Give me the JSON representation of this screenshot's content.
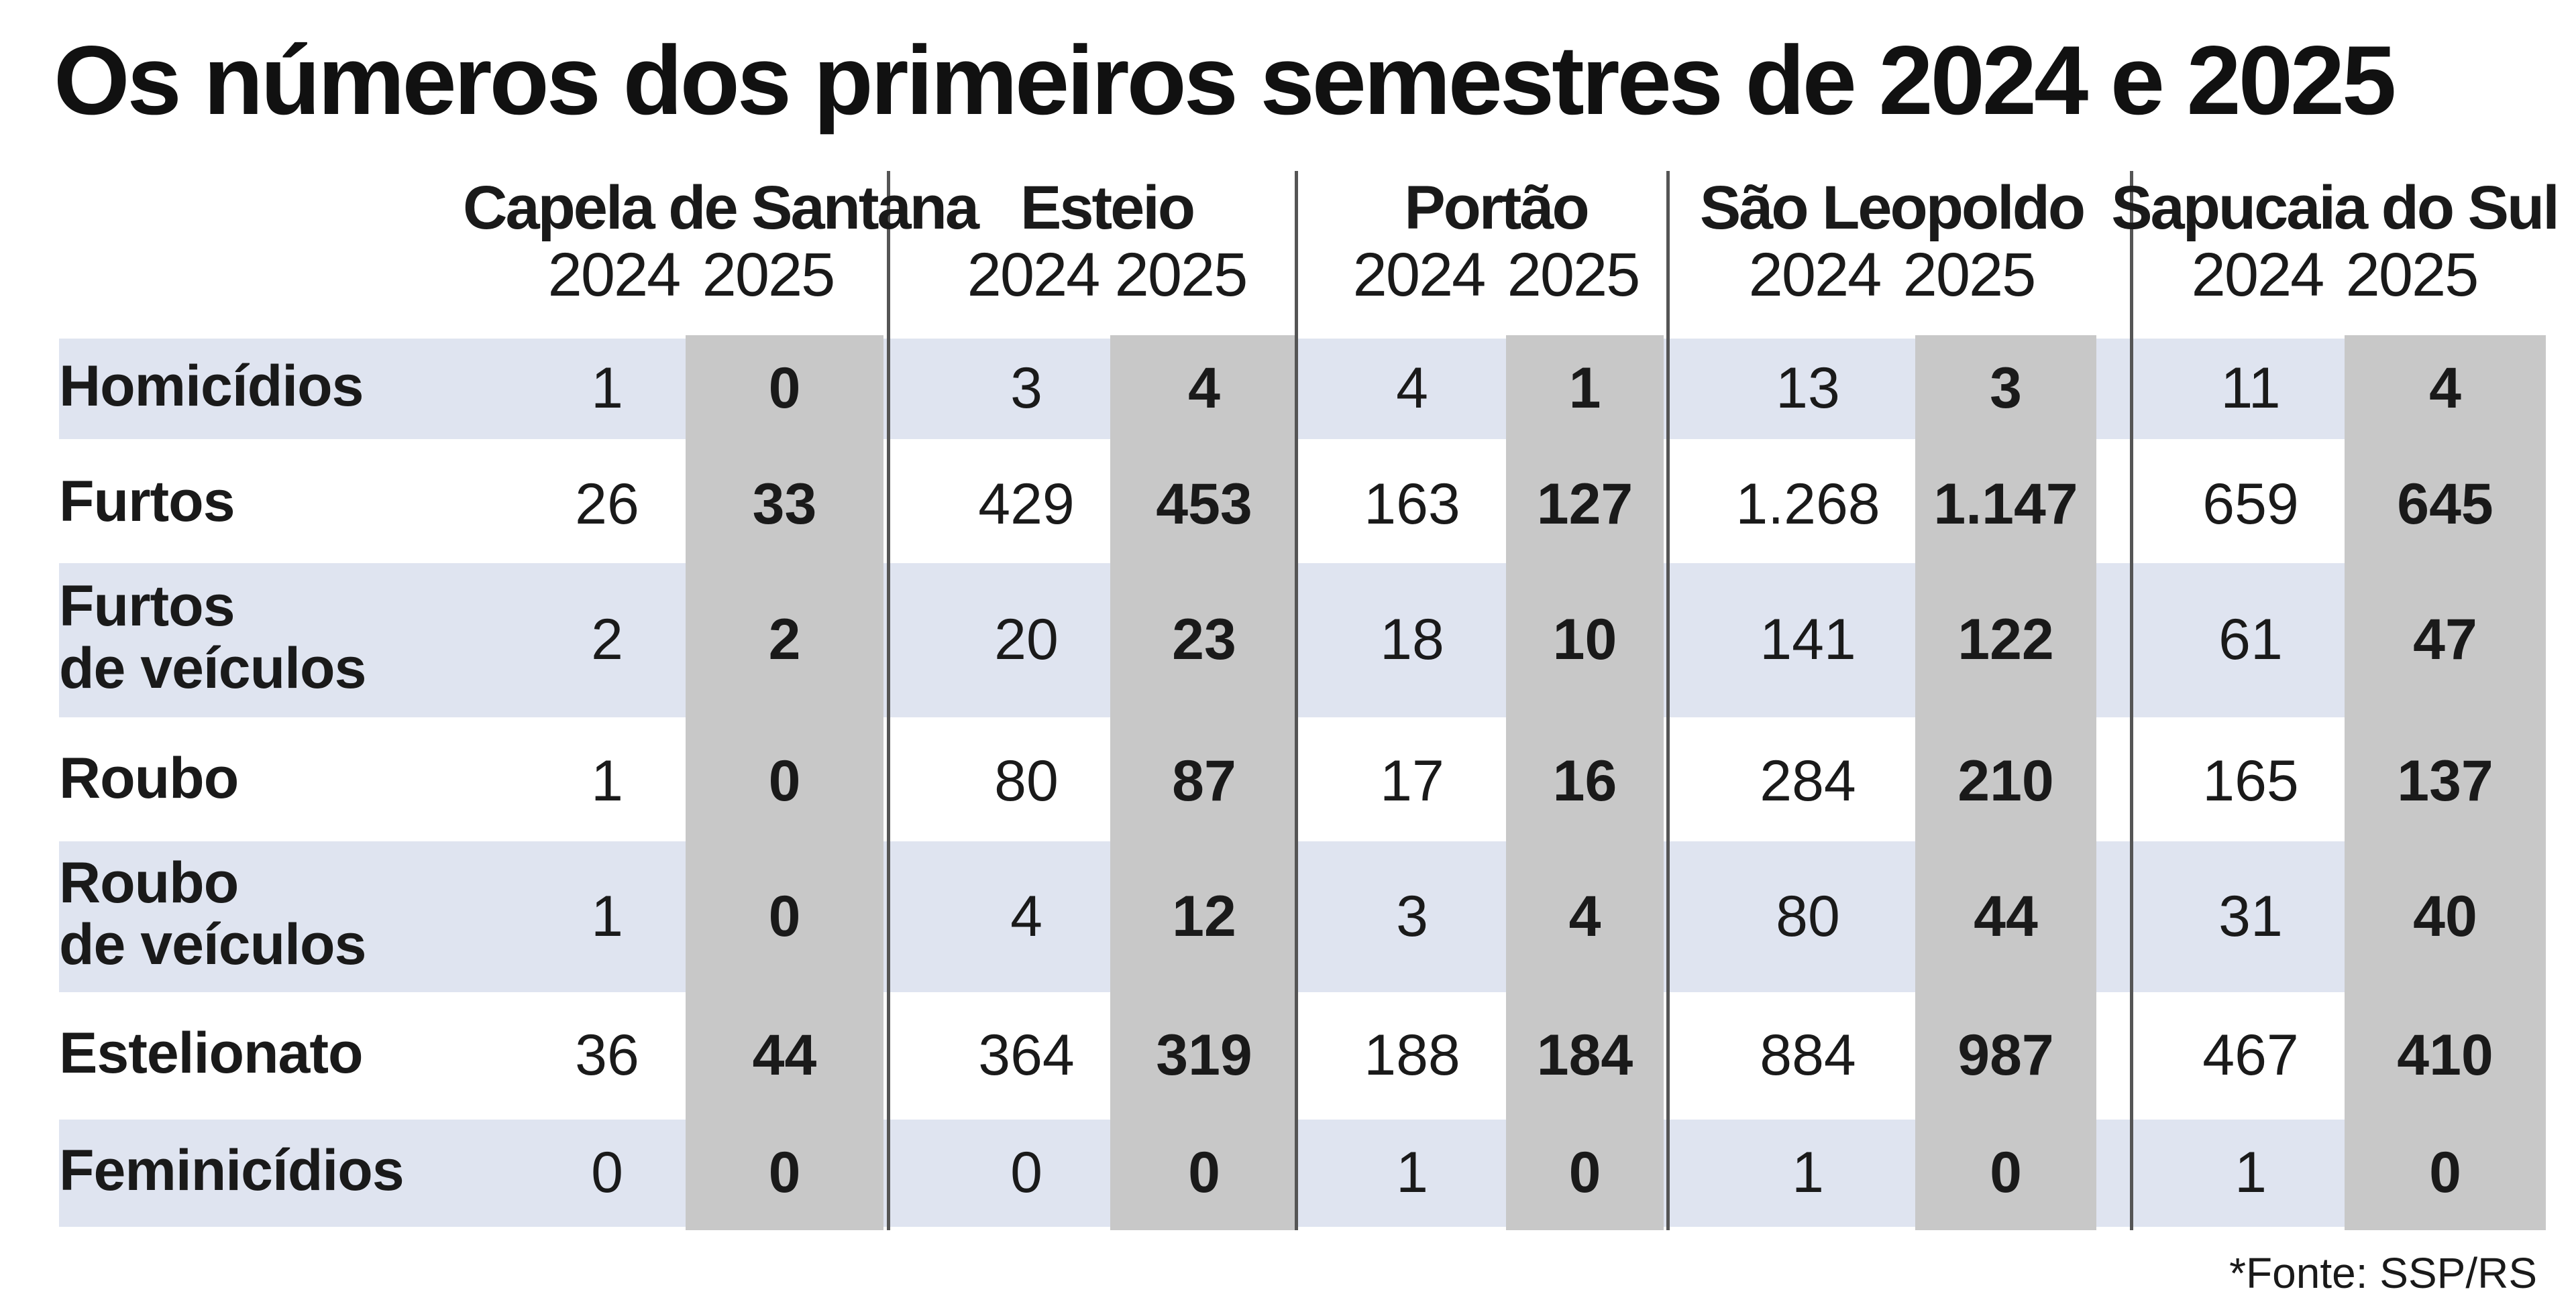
{
  "title": "Os números dos primeiros semestres de 2024 e 2025",
  "source": "*Fonte: SSP/RS",
  "colors": {
    "band_light": "#dfe4f0",
    "band_white": "#ffffff",
    "shade_2025": "#c8c8c8",
    "divider": "#555555"
  },
  "chart_data": {
    "type": "table",
    "title": "Os números dos primeiros semestres de 2024 e 2025",
    "cities": [
      {
        "name": "Capela de Santana",
        "years": [
          "2024",
          "2025"
        ]
      },
      {
        "name": "Esteio",
        "years": [
          "2024",
          "2025"
        ]
      },
      {
        "name": "Portão",
        "years": [
          "2024",
          "2025"
        ]
      },
      {
        "name": "São Leopoldo",
        "years": [
          "2024",
          "2025"
        ]
      },
      {
        "name": "Sapucaia do Sul",
        "years": [
          "2024",
          "2025"
        ]
      }
    ],
    "rows": [
      {
        "label": "Homicídios",
        "values": [
          "1",
          "0",
          "3",
          "4",
          "4",
          "1",
          "13",
          "3",
          "11",
          "4"
        ]
      },
      {
        "label": "Furtos",
        "values": [
          "26",
          "33",
          "429",
          "453",
          "163",
          "127",
          "1.268",
          "1.147",
          "659",
          "645"
        ]
      },
      {
        "label": "Furtos\nde veículos",
        "values": [
          "2",
          "2",
          "20",
          "23",
          "18",
          "10",
          "141",
          "122",
          "61",
          "47"
        ]
      },
      {
        "label": "Roubo",
        "values": [
          "1",
          "0",
          "80",
          "87",
          "17",
          "16",
          "284",
          "210",
          "165",
          "137"
        ]
      },
      {
        "label": "Roubo\nde veículos",
        "values": [
          "1",
          "0",
          "4",
          "12",
          "3",
          "4",
          "80",
          "44",
          "31",
          "40"
        ]
      },
      {
        "label": "Estelionato",
        "values": [
          "36",
          "44",
          "364",
          "319",
          "188",
          "184",
          "884",
          "987",
          "467",
          "410"
        ]
      },
      {
        "label": "Feminicídios",
        "values": [
          "0",
          "0",
          "0",
          "0",
          "1",
          "0",
          "1",
          "0",
          "1",
          "0"
        ]
      }
    ],
    "source": "*Fonte: SSP/RS"
  }
}
